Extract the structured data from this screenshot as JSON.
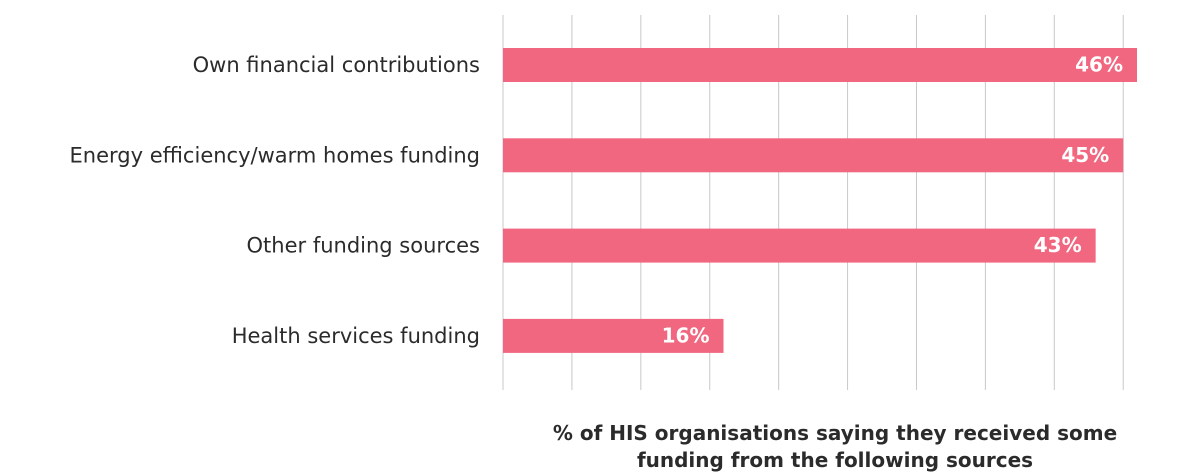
{
  "chart_data": {
    "type": "barh",
    "categories": [
      "Own financial contributions",
      "Energy efficiency/warm homes funding",
      "Other funding sources",
      "Health services funding"
    ],
    "values": [
      46,
      45,
      43,
      16
    ],
    "value_labels": [
      "46%",
      "45%",
      "43%",
      "16%"
    ],
    "color": "#f0677f",
    "xlabel": "% of HIS organisations saying they received some funding from the following sources",
    "xlim": [
      0,
      46
    ],
    "xticks": [
      0,
      5,
      10,
      15,
      20,
      25,
      30,
      35,
      40,
      45
    ],
    "grid": true
  }
}
